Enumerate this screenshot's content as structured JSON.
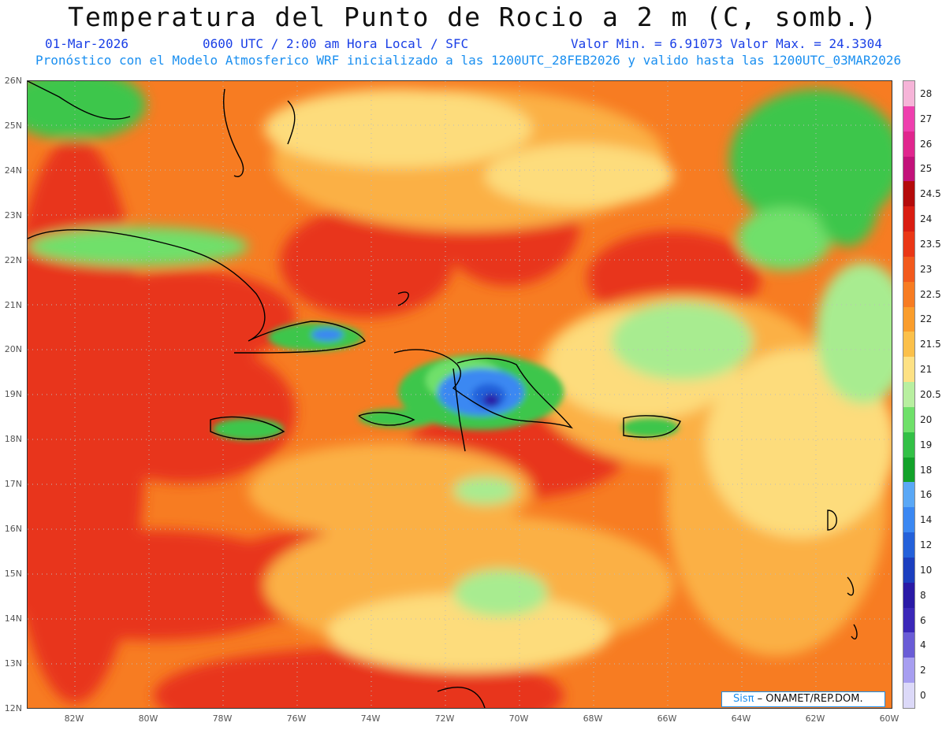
{
  "title": "Temperatura del Punto de Rocio a 2 m (C, somb.)",
  "info_line": {
    "date": "01-Mar-2026",
    "time": "0600 UTC / 2:00 am Hora Local / SFC",
    "minmax": "Valor Min. = 6.91073  Valor Max. = 24.3304"
  },
  "model_line": "Pronóstico con el Modelo Atmosferico WRF inicializado a las 1200UTC_28FEB2026 y valido hasta las  1200UTC_03MAR2026",
  "y_ticks": [
    "26N",
    "25N",
    "24N",
    "23N",
    "22N",
    "21N",
    "20N",
    "19N",
    "18N",
    "17N",
    "16N",
    "15N",
    "14N",
    "13N",
    "12N"
  ],
  "x_ticks": [
    "82W",
    "80W",
    "78W",
    "76W",
    "74W",
    "72W",
    "70W",
    "68W",
    "66W",
    "64W",
    "62W",
    "60W"
  ],
  "colorbar": {
    "labels": [
      "28",
      "27",
      "26",
      "25",
      "24.5",
      "24",
      "23.5",
      "23",
      "22.5",
      "22",
      "21.5",
      "21",
      "20.5",
      "20",
      "19",
      "18",
      "16",
      "14",
      "12",
      "10",
      "8",
      "6",
      "4",
      "2",
      "0"
    ],
    "colors": [
      "#f6b4d8",
      "#ee3fae",
      "#e0268e",
      "#c2127a",
      "#b40b0b",
      "#d91d12",
      "#ea3716",
      "#f25a1d",
      "#f77c22",
      "#fa9d2c",
      "#fbc04a",
      "#fde184",
      "#b8efa0",
      "#6fe06a",
      "#33c046",
      "#13a22a",
      "#5aa8f6",
      "#3b88f2",
      "#2461da",
      "#1c3fbf",
      "#2a1aa6",
      "#3b28b8",
      "#6a5cd6",
      "#a79ef0",
      "#dcd9f8"
    ]
  },
  "credit": {
    "sis": "Sisπ",
    "text": "– ONAMET/REP.DOM."
  },
  "palette": {
    "red": "#e8361a",
    "orange": "#f7801f",
    "light_orange": "#fbb044",
    "yellow": "#fddc7c",
    "light_green": "#a8ec90",
    "green": "#3cc64b",
    "blue": "#3b88f2",
    "dark_blue": "#2a1aa6",
    "land_outline": "#000000"
  }
}
